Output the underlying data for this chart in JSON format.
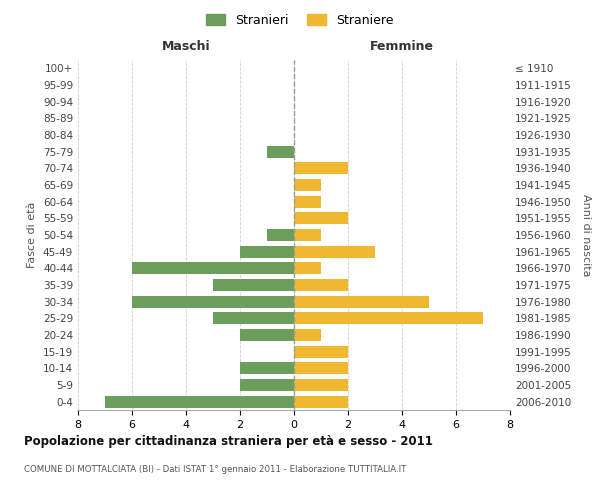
{
  "age_groups": [
    "0-4",
    "5-9",
    "10-14",
    "15-19",
    "20-24",
    "25-29",
    "30-34",
    "35-39",
    "40-44",
    "45-49",
    "50-54",
    "55-59",
    "60-64",
    "65-69",
    "70-74",
    "75-79",
    "80-84",
    "85-89",
    "90-94",
    "95-99",
    "100+"
  ],
  "birth_years": [
    "2006-2010",
    "2001-2005",
    "1996-2000",
    "1991-1995",
    "1986-1990",
    "1981-1985",
    "1976-1980",
    "1971-1975",
    "1966-1970",
    "1961-1965",
    "1956-1960",
    "1951-1955",
    "1946-1950",
    "1941-1945",
    "1936-1940",
    "1931-1935",
    "1926-1930",
    "1921-1925",
    "1916-1920",
    "1911-1915",
    "≤ 1910"
  ],
  "maschi": [
    7,
    2,
    2,
    0,
    2,
    3,
    6,
    3,
    6,
    2,
    1,
    0,
    0,
    0,
    0,
    1,
    0,
    0,
    0,
    0,
    0
  ],
  "femmine": [
    2,
    2,
    2,
    2,
    1,
    7,
    5,
    2,
    1,
    3,
    1,
    2,
    1,
    1,
    2,
    0,
    0,
    0,
    0,
    0,
    0
  ],
  "maschi_color": "#6a9e5a",
  "femmine_color": "#f0b830",
  "title": "Popolazione per cittadinanza straniera per età e sesso - 2011",
  "subtitle": "COMUNE DI MOTTALCIATA (BI) - Dati ISTAT 1° gennaio 2011 - Elaborazione TUTTITALIA.IT",
  "xlabel_left": "Maschi",
  "xlabel_right": "Femmine",
  "ylabel_left": "Fasce di età",
  "ylabel_right": "Anni di nascita",
  "legend_maschi": "Stranieri",
  "legend_femmine": "Straniere",
  "xlim": 8,
  "background_color": "#ffffff",
  "grid_color": "#d0d0d0",
  "bar_height": 0.72
}
